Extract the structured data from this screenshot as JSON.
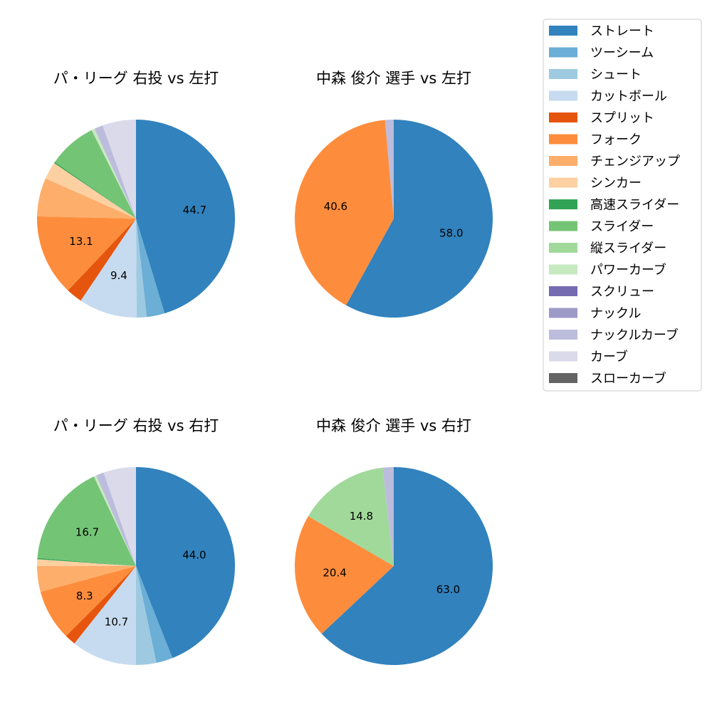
{
  "legend": {
    "items": [
      {
        "label": "ストレート",
        "color": "#3182bd"
      },
      {
        "label": "ツーシーム",
        "color": "#6baed6"
      },
      {
        "label": "シュート",
        "color": "#9ecae1"
      },
      {
        "label": "カットボール",
        "color": "#c6dbef"
      },
      {
        "label": "スプリット",
        "color": "#e6550d"
      },
      {
        "label": "フォーク",
        "color": "#fd8d3c"
      },
      {
        "label": "チェンジアップ",
        "color": "#fdae6b"
      },
      {
        "label": "シンカー",
        "color": "#fdd0a2"
      },
      {
        "label": "高速スライダー",
        "color": "#31a354"
      },
      {
        "label": "スライダー",
        "color": "#74c476"
      },
      {
        "label": "縦スライダー",
        "color": "#a1d99b"
      },
      {
        "label": "パワーカーブ",
        "color": "#c7e9c0"
      },
      {
        "label": "スクリュー",
        "color": "#756bb1"
      },
      {
        "label": "ナックル",
        "color": "#9e9ac8"
      },
      {
        "label": "ナックルカーブ",
        "color": "#bcbddc"
      },
      {
        "label": "カーブ",
        "color": "#dadaeb"
      },
      {
        "label": "スローカーブ",
        "color": "#636363"
      }
    ]
  },
  "chart_data": [
    {
      "type": "pie",
      "title": "パ・リーグ 右投 vs 左打",
      "categories": [
        "ストレート",
        "ツーシーム",
        "シュート",
        "カットボール",
        "スプリット",
        "フォーク",
        "チェンジアップ",
        "シンカー",
        "高速スライダー",
        "スライダー",
        "縦スライダー",
        "パワーカーブ",
        "スクリュー",
        "ナックル",
        "ナックルカーブ",
        "カーブ",
        "スローカーブ"
      ],
      "values": [
        44.7,
        2.9,
        1.6,
        9.4,
        2.6,
        13.1,
        6.2,
        2.8,
        0.2,
        7.8,
        0.0,
        0.5,
        0.0,
        0.0,
        1.4,
        5.4,
        0.0
      ],
      "labels": [
        "44.7",
        "",
        "",
        "9.4",
        "",
        "13.1",
        "",
        "",
        "",
        "",
        "",
        "",
        "",
        "",
        "",
        "",
        ""
      ]
    },
    {
      "type": "pie",
      "title": "中森 俊介 選手 vs 左打",
      "categories": [
        "ストレート",
        "フォーク",
        "ナックルカーブ"
      ],
      "values": [
        58.0,
        40.6,
        1.4
      ],
      "labels": [
        "58.0",
        "40.6",
        ""
      ]
    },
    {
      "type": "pie",
      "title": "パ・リーグ 右投 vs 右打",
      "categories": [
        "ストレート",
        "ツーシーム",
        "シュート",
        "カットボール",
        "スプリット",
        "フォーク",
        "チェンジアップ",
        "シンカー",
        "高速スライダー",
        "スライダー",
        "縦スライダー",
        "パワーカーブ",
        "スクリュー",
        "ナックル",
        "ナックルカーブ",
        "カーブ",
        "スローカーブ"
      ],
      "values": [
        44.0,
        2.7,
        3.3,
        10.7,
        1.8,
        8.3,
        4.2,
        1.1,
        0.2,
        16.7,
        0.0,
        0.4,
        0.0,
        0.0,
        1.3,
        5.3,
        0.0
      ],
      "labels": [
        "44.0",
        "",
        "",
        "10.7",
        "",
        "8.3",
        "",
        "",
        "",
        "16.7",
        "",
        "",
        "",
        "",
        "",
        "",
        ""
      ]
    },
    {
      "type": "pie",
      "title": "中森 俊介 選手 vs 右打",
      "categories": [
        "ストレート",
        "フォーク",
        "縦スライダー",
        "ナックルカーブ"
      ],
      "values": [
        63.0,
        20.4,
        14.8,
        1.8
      ],
      "labels": [
        "63.0",
        "20.4",
        "14.8",
        ""
      ]
    }
  ]
}
